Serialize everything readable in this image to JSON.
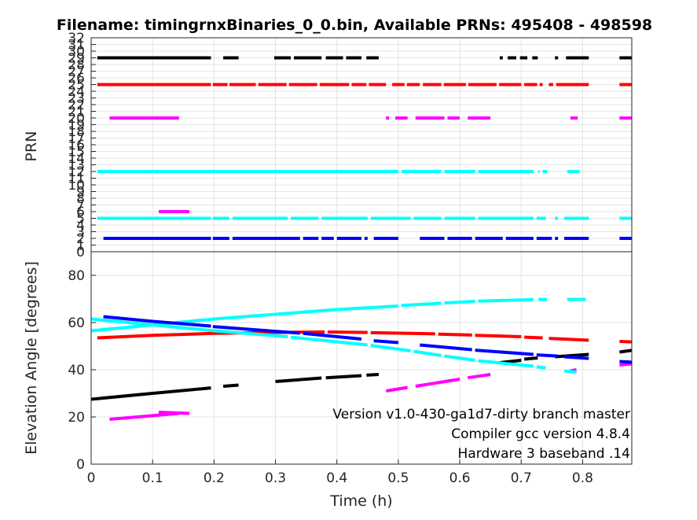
{
  "chart_data": [
    {
      "type": "line",
      "title": "Filename: timingrnxBinaries_0_0.bin, Available PRNs: 495408 - 498598",
      "xlabel": "",
      "ylabel": "PRN",
      "xlim": [
        0,
        0.88
      ],
      "ylim": [
        0,
        32
      ],
      "grid": true,
      "y_ticks": [
        "0",
        "1",
        "2",
        "3",
        "4",
        "5",
        "6",
        "7",
        "8",
        "9",
        "10",
        "11",
        "12",
        "13",
        "14",
        "15",
        "16",
        "17",
        "18",
        "19",
        "20",
        "21",
        "22",
        "23",
        "24",
        "25",
        "26",
        "27",
        "28",
        "29",
        "30",
        "31",
        "32"
      ],
      "series": [
        {
          "prn": 29,
          "color": "#000000",
          "segments": [
            [
              0.01,
              0.195
            ],
            [
              0.215,
              0.24
            ],
            [
              0.298,
              0.325
            ],
            [
              0.33,
              0.375
            ],
            [
              0.382,
              0.41
            ],
            [
              0.415,
              0.44
            ],
            [
              0.448,
              0.468
            ],
            [
              0.665,
              0.67
            ],
            [
              0.678,
              0.692
            ],
            [
              0.698,
              0.71
            ],
            [
              0.718,
              0.727
            ],
            [
              0.755,
              0.76
            ],
            [
              0.773,
              0.81
            ],
            [
              0.86,
              0.88
            ]
          ]
        },
        {
          "prn": 25,
          "color": "#ff0000",
          "segments": [
            [
              0.01,
              0.195
            ],
            [
              0.198,
              0.222
            ],
            [
              0.225,
              0.268
            ],
            [
              0.272,
              0.318
            ],
            [
              0.322,
              0.368
            ],
            [
              0.372,
              0.42
            ],
            [
              0.424,
              0.448
            ],
            [
              0.452,
              0.48
            ],
            [
              0.49,
              0.51
            ],
            [
              0.514,
              0.535
            ],
            [
              0.54,
              0.57
            ],
            [
              0.574,
              0.61
            ],
            [
              0.614,
              0.66
            ],
            [
              0.664,
              0.7
            ],
            [
              0.705,
              0.726
            ],
            [
              0.73,
              0.735
            ],
            [
              0.745,
              0.752
            ],
            [
              0.757,
              0.81
            ],
            [
              0.86,
              0.88
            ]
          ]
        },
        {
          "prn": 20,
          "color": "#ff00ff",
          "segments": [
            [
              0.03,
              0.143
            ],
            [
              0.48,
              0.485
            ],
            [
              0.495,
              0.515
            ],
            [
              0.528,
              0.575
            ],
            [
              0.58,
              0.6
            ],
            [
              0.613,
              0.65
            ],
            [
              0.78,
              0.792
            ],
            [
              0.86,
              0.88
            ]
          ]
        },
        {
          "prn": 12,
          "color": "#00ffff",
          "segments": [
            [
              0.01,
              0.5
            ],
            [
              0.505,
              0.57
            ],
            [
              0.575,
              0.625
            ],
            [
              0.63,
              0.72
            ],
            [
              0.728,
              0.73
            ],
            [
              0.735,
              0.742
            ],
            [
              0.775,
              0.795
            ]
          ]
        },
        {
          "prn": 6,
          "color": "#ff00ff",
          "segments": [
            [
              0.11,
              0.16
            ]
          ]
        },
        {
          "prn": 5,
          "color": "#00ffff",
          "segments": [
            [
              0.01,
              0.195
            ],
            [
              0.198,
              0.225
            ],
            [
              0.23,
              0.32
            ],
            [
              0.325,
              0.37
            ],
            [
              0.375,
              0.45
            ],
            [
              0.455,
              0.52
            ],
            [
              0.525,
              0.57
            ],
            [
              0.575,
              0.625
            ],
            [
              0.63,
              0.72
            ],
            [
              0.725,
              0.74
            ],
            [
              0.755,
              0.76
            ],
            [
              0.77,
              0.81
            ],
            [
              0.86,
              0.88
            ]
          ]
        },
        {
          "prn": 2,
          "color": "#0000ff",
          "segments": [
            [
              0.02,
              0.195
            ],
            [
              0.198,
              0.225
            ],
            [
              0.23,
              0.34
            ],
            [
              0.345,
              0.37
            ],
            [
              0.375,
              0.395
            ],
            [
              0.4,
              0.44
            ],
            [
              0.445,
              0.45
            ],
            [
              0.46,
              0.5
            ],
            [
              0.535,
              0.575
            ],
            [
              0.58,
              0.62
            ],
            [
              0.625,
              0.67
            ],
            [
              0.675,
              0.72
            ],
            [
              0.725,
              0.75
            ],
            [
              0.755,
              0.76
            ],
            [
              0.77,
              0.81
            ],
            [
              0.86,
              0.88
            ]
          ]
        }
      ]
    },
    {
      "type": "line",
      "xlabel": "Time (h)",
      "ylabel": "Elevation Angle [degrees]",
      "xlim": [
        0,
        0.88
      ],
      "ylim": [
        0,
        90
      ],
      "grid": true,
      "x_ticks": [
        "0",
        "0.1",
        "0.2",
        "0.3",
        "0.4",
        "0.5",
        "0.6",
        "0.7",
        "0.8"
      ],
      "y_ticks": [
        "0",
        "20",
        "40",
        "60",
        "80"
      ],
      "series": [
        {
          "prn": 29,
          "color": "#000000",
          "segments": [
            [
              [
                0,
                27.5
              ],
              [
                0.1,
                30
              ],
              [
                0.195,
                32.3
              ]
            ],
            [
              [
                0.215,
                33
              ],
              [
                0.24,
                33.5
              ]
            ],
            [
              [
                0.3,
                35
              ],
              [
                0.375,
                36.5
              ]
            ],
            [
              [
                0.382,
                36.6
              ],
              [
                0.44,
                37.5
              ]
            ],
            [
              [
                0.448,
                37.7
              ],
              [
                0.468,
                38
              ]
            ],
            [
              [
                0.665,
                43
              ],
              [
                0.7,
                44
              ]
            ],
            [
              [
                0.705,
                44.5
              ],
              [
                0.727,
                45
              ]
            ],
            [
              [
                0.755,
                45.5
              ],
              [
                0.81,
                46.5
              ]
            ],
            [
              [
                0.86,
                47.5
              ],
              [
                0.88,
                48.2
              ]
            ]
          ]
        },
        {
          "prn": 25,
          "color": "#ff0000",
          "segments": [
            [
              [
                0.01,
                53.5
              ],
              [
                0.1,
                54.6
              ],
              [
                0.2,
                55.4
              ],
              [
                0.3,
                55.8
              ],
              [
                0.38,
                56
              ]
            ],
            [
              [
                0.385,
                56
              ],
              [
                0.45,
                55.8
              ]
            ],
            [
              [
                0.455,
                55.7
              ],
              [
                0.5,
                55.5
              ],
              [
                0.56,
                55.2
              ]
            ],
            [
              [
                0.565,
                55.1
              ],
              [
                0.62,
                54.7
              ]
            ],
            [
              [
                0.625,
                54.6
              ],
              [
                0.7,
                54
              ]
            ],
            [
              [
                0.705,
                53.8
              ],
              [
                0.735,
                53.5
              ]
            ],
            [
              [
                0.745,
                53.3
              ],
              [
                0.81,
                52.5
              ]
            ],
            [
              [
                0.86,
                52
              ],
              [
                0.88,
                51.8
              ]
            ]
          ]
        },
        {
          "prn": 20,
          "color": "#ff00ff",
          "segments": [
            [
              [
                0.03,
                19
              ],
              [
                0.143,
                21.5
              ]
            ],
            [
              [
                0.48,
                31
              ],
              [
                0.515,
                32.5
              ]
            ],
            [
              [
                0.528,
                33
              ],
              [
                0.6,
                36
              ]
            ],
            [
              [
                0.613,
                36.6
              ],
              [
                0.65,
                38
              ]
            ],
            [
              [
                0.78,
                39.5
              ],
              [
                0.79,
                40
              ]
            ],
            [
              [
                0.86,
                42
              ],
              [
                0.88,
                42.5
              ]
            ]
          ]
        },
        {
          "prn": 6,
          "color": "#ff00ff",
          "segments": [
            [
              [
                0.11,
                22
              ],
              [
                0.16,
                21.5
              ]
            ]
          ]
        },
        {
          "prn": 12,
          "color": "#00ffff",
          "segments": [
            [
              [
                0,
                56.5
              ],
              [
                0.1,
                59
              ],
              [
                0.2,
                61.5
              ],
              [
                0.3,
                63.5
              ],
              [
                0.4,
                65.5
              ],
              [
                0.5,
                67
              ]
            ],
            [
              [
                0.505,
                67.2
              ],
              [
                0.57,
                68.2
              ]
            ],
            [
              [
                0.575,
                68.3
              ],
              [
                0.625,
                69
              ]
            ],
            [
              [
                0.63,
                69.1
              ],
              [
                0.72,
                69.7
              ]
            ],
            [
              [
                0.728,
                69.8
              ],
              [
                0.742,
                69.8
              ]
            ],
            [
              [
                0.775,
                69.8
              ],
              [
                0.805,
                69.8
              ]
            ]
          ]
        },
        {
          "prn": 5,
          "color": "#00ffff",
          "segments": [
            [
              [
                0,
                61.5
              ],
              [
                0.1,
                59
              ],
              [
                0.2,
                56.5
              ],
              [
                0.32,
                54
              ]
            ],
            [
              [
                0.325,
                53.8
              ],
              [
                0.45,
                50.5
              ]
            ],
            [
              [
                0.455,
                50.3
              ],
              [
                0.52,
                48
              ]
            ],
            [
              [
                0.525,
                47.8
              ],
              [
                0.57,
                46
              ]
            ],
            [
              [
                0.575,
                45.8
              ],
              [
                0.625,
                44
              ]
            ],
            [
              [
                0.63,
                43.8
              ],
              [
                0.72,
                41.5
              ]
            ],
            [
              [
                0.725,
                41.2
              ],
              [
                0.74,
                40.8
              ]
            ],
            [
              [
                0.77,
                39.5
              ],
              [
                0.79,
                39
              ]
            ]
          ]
        },
        {
          "prn": 2,
          "color": "#0000ff",
          "segments": [
            [
              [
                0.02,
                62.5
              ],
              [
                0.1,
                60.5
              ],
              [
                0.195,
                58.5
              ]
            ],
            [
              [
                0.198,
                58.3
              ],
              [
                0.34,
                55.5
              ]
            ],
            [
              [
                0.345,
                55.4
              ],
              [
                0.44,
                53
              ]
            ],
            [
              [
                0.46,
                52.3
              ],
              [
                0.5,
                51.5
              ]
            ],
            [
              [
                0.535,
                50.5
              ],
              [
                0.62,
                48.5
              ]
            ],
            [
              [
                0.625,
                48.3
              ],
              [
                0.72,
                46.5
              ]
            ],
            [
              [
                0.725,
                46.3
              ],
              [
                0.76,
                45.8
              ]
            ],
            [
              [
                0.77,
                45.5
              ],
              [
                0.81,
                44.8
              ]
            ],
            [
              [
                0.86,
                43.5
              ],
              [
                0.88,
                43.2
              ]
            ]
          ]
        }
      ],
      "annotations": [
        "Version v1.0-430-ga1d7-dirty branch master",
        "Compiler gcc version 4.8.4",
        "Hardware 3 baseband .14"
      ]
    }
  ]
}
